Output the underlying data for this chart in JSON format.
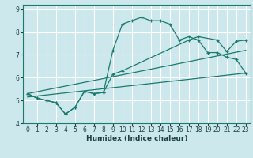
{
  "xlabel": "Humidex (Indice chaleur)",
  "bg_color": "#cce8ec",
  "grid_color": "#ffffff",
  "line_color": "#1a7a6e",
  "xlim": [
    -0.5,
    23.5
  ],
  "ylim": [
    4,
    9.2
  ],
  "xticks": [
    0,
    1,
    2,
    3,
    4,
    5,
    6,
    7,
    8,
    9,
    10,
    11,
    12,
    13,
    14,
    15,
    16,
    17,
    18,
    19,
    20,
    21,
    22,
    23
  ],
  "yticks": [
    4,
    5,
    6,
    7,
    8,
    9
  ],
  "line1_x": [
    0,
    1,
    2,
    3,
    4,
    5,
    6,
    7,
    8,
    9,
    10,
    11,
    12,
    13,
    14,
    15,
    16,
    17,
    18,
    19,
    20,
    21,
    22,
    23
  ],
  "line1_y": [
    5.3,
    5.1,
    5.0,
    4.9,
    4.4,
    4.7,
    5.4,
    5.3,
    5.35,
    7.2,
    8.35,
    8.5,
    8.65,
    8.5,
    8.5,
    8.35,
    7.65,
    7.8,
    7.65,
    7.1,
    7.1,
    6.9,
    6.8,
    6.2
  ],
  "line2_x": [
    0,
    1,
    2,
    3,
    4,
    5,
    6,
    7,
    8,
    9,
    10,
    17,
    18,
    20,
    21,
    22,
    23
  ],
  "line2_y": [
    5.3,
    5.1,
    5.0,
    4.9,
    4.4,
    4.7,
    5.4,
    5.3,
    5.35,
    6.15,
    6.3,
    7.65,
    7.8,
    7.65,
    7.15,
    7.6,
    7.65
  ],
  "line3_x": [
    0,
    23
  ],
  "line3_y": [
    5.15,
    6.2
  ],
  "line4_x": [
    0,
    23
  ],
  "line4_y": [
    5.3,
    7.2
  ],
  "xlabel_fontsize": 6.5,
  "tick_fontsize": 5.5
}
